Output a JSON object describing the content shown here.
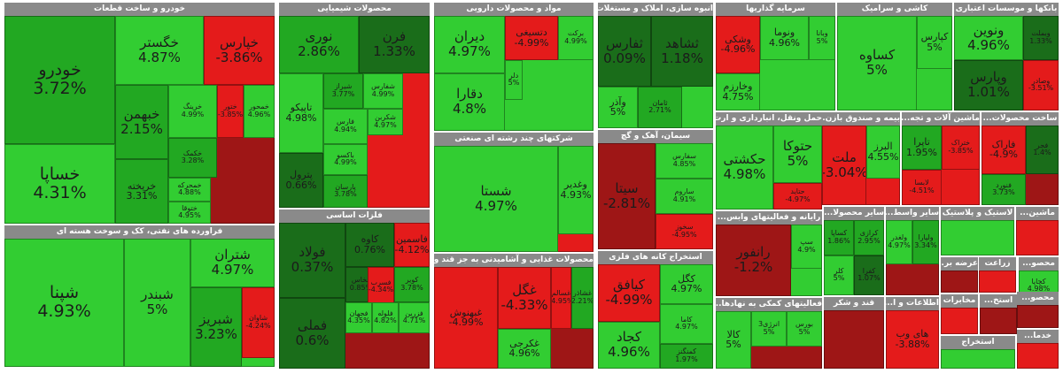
{
  "colors": {
    "strong_green": "#32cd32",
    "green": "#22a822",
    "dark_green": "#1a6d1a",
    "red": "#e41b1b",
    "dark_red": "#9e1616",
    "header": "#8a8a8a"
  },
  "sectors": [
    {
      "id": "auto",
      "title": "خودرو و ساخت قطعات",
      "tiles": [
        {
          "sym": "خودرو",
          "pct": "3.72%"
        },
        {
          "sym": "خساپا",
          "pct": "4.31%"
        },
        {
          "sym": "خگستر",
          "pct": "4.87%"
        },
        {
          "sym": "خپارس",
          "pct": "-3.86%"
        },
        {
          "sym": "خبهمن",
          "pct": "2.15%"
        },
        {
          "sym": "خریخته",
          "pct": "3.31%"
        },
        {
          "sym": "خرینگ",
          "pct": "4.99%"
        },
        {
          "sym": "خمحور",
          "pct": "4.96%"
        },
        {
          "sym": "خکمک",
          "pct": "3.28%"
        },
        {
          "sym": "خمحرکه",
          "pct": "4.88%"
        },
        {
          "sym": "ختوقا",
          "pct": "4.95%"
        },
        {
          "sym": "ختور",
          "pct": "-3.85%"
        }
      ]
    },
    {
      "id": "petro",
      "title": "فراورده های نفتی، کک و سوخت هسته ای",
      "tiles": [
        {
          "sym": "شپنا",
          "pct": "4.93%"
        },
        {
          "sym": "شبندر",
          "pct": "5%"
        },
        {
          "sym": "شتران",
          "pct": "4.97%"
        },
        {
          "sym": "شبریز",
          "pct": "3.23%"
        },
        {
          "sym": "شاوان",
          "pct": "-4.24%"
        }
      ]
    },
    {
      "id": "chem",
      "title": "محصولات شیمیایی",
      "tiles": [
        {
          "sym": "نوری",
          "pct": "2.86%"
        },
        {
          "sym": "فرن",
          "pct": "1.33%"
        },
        {
          "sym": "تاپیکو",
          "pct": "4.98%"
        },
        {
          "sym": "شیراز",
          "pct": "3.77%"
        },
        {
          "sym": "شفارس",
          "pct": "4.99%"
        },
        {
          "sym": "فارس",
          "pct": "4.94%"
        },
        {
          "sym": "پترول",
          "pct": "0.66%"
        },
        {
          "sym": "شکربن",
          "pct": "4.97%"
        },
        {
          "sym": "باکسو",
          "pct": "4.99%"
        },
        {
          "sym": "پارسان",
          "pct": "3.78%"
        }
      ]
    },
    {
      "id": "metals",
      "title": "فلزات اساسی",
      "tiles": [
        {
          "sym": "فولاد",
          "pct": "0.37%"
        },
        {
          "sym": "کاوه",
          "pct": "0.76%"
        },
        {
          "sym": "فاسمین",
          "pct": "-4.12%"
        },
        {
          "sym": "فملی",
          "pct": "0.6%"
        },
        {
          "sym": "فخاس",
          "pct": "0.85%"
        },
        {
          "sym": "کویر",
          "pct": "3.78%"
        },
        {
          "sym": "فسرب",
          "pct": "-4.34%"
        },
        {
          "sym": "فجهان",
          "pct": "4.35%"
        },
        {
          "sym": "فلوله",
          "pct": "4.82%"
        },
        {
          "sym": "فزرین",
          "pct": "4.71%"
        }
      ]
    },
    {
      "id": "pharma",
      "title": "مواد و محصولات دارویی",
      "tiles": [
        {
          "sym": "دیران",
          "pct": "4.97%"
        },
        {
          "sym": "دقارا",
          "pct": "4.8%"
        },
        {
          "sym": "دتسیغی",
          "pct": "-4.99%"
        },
        {
          "sym": "برکت",
          "pct": "4.99%"
        },
        {
          "sym": "دلر",
          "pct": "5%"
        }
      ]
    },
    {
      "id": "multi",
      "title": "شرکتهای چند رشته ای صنعتی",
      "tiles": [
        {
          "sym": "شستا",
          "pct": "4.97%"
        },
        {
          "sym": "وغدیر",
          "pct": "4.93%"
        }
      ]
    },
    {
      "id": "food",
      "title": "محصولات غذایی و آشامیدنی به جز قند و",
      "tiles": [
        {
          "sym": "غبهنوش",
          "pct": "-4.99%"
        },
        {
          "sym": "غگل",
          "pct": "-4.33%"
        },
        {
          "sym": "غسالم",
          "pct": "-4.95%"
        },
        {
          "sym": "غشاذر",
          "pct": "2.21%"
        },
        {
          "sym": "غکرجی",
          "pct": "4.96%"
        }
      ]
    },
    {
      "id": "realestate",
      "title": "انبوه سازی، املاک و مستغلات",
      "tiles": [
        {
          "sym": "ثفارس",
          "pct": "0.09%"
        },
        {
          "sym": "ثشاهد",
          "pct": "1.18%"
        },
        {
          "sym": "وآذر",
          "pct": "5%"
        },
        {
          "sym": "ثامان",
          "pct": "2.71%"
        }
      ]
    },
    {
      "id": "cement",
      "title": "سیمان، آهک و گچ",
      "tiles": [
        {
          "sym": "سیتا",
          "pct": "-2.81%"
        },
        {
          "sym": "سفارس",
          "pct": "4.85%"
        },
        {
          "sym": "سخوز",
          "pct": "-4.95%"
        },
        {
          "sym": "ساروم",
          "pct": "4.91%"
        }
      ]
    },
    {
      "id": "mining",
      "title": "استخراج کانه های فلزی",
      "tiles": [
        {
          "sym": "کیافق",
          "pct": "-4.99%"
        },
        {
          "sym": "کگل",
          "pct": "4.97%"
        },
        {
          "sym": "کجاد",
          "pct": "4.96%"
        },
        {
          "sym": "کاما",
          "pct": "4.97%"
        },
        {
          "sym": "کمنگنز",
          "pct": "1.97%"
        }
      ]
    },
    {
      "id": "invest",
      "title": "سرمایه گذاریها",
      "tiles": [
        {
          "sym": "وشکی",
          "pct": "-4.96%"
        },
        {
          "sym": "ونوما",
          "pct": "4.96%"
        },
        {
          "sym": "وبانا",
          "pct": "5%"
        },
        {
          "sym": "وخارزم",
          "pct": "4.75%"
        }
      ]
    },
    {
      "id": "transport",
      "title": "حمل ونقل، انبارداری و ارت...",
      "tiles": [
        {
          "sym": "حکشتی",
          "pct": "4.98%"
        },
        {
          "sym": "حتوکا",
          "pct": "5%"
        },
        {
          "sym": "حتاید",
          "pct": "-4.97%"
        }
      ]
    },
    {
      "id": "finance",
      "title": "فعالیتهای کمکی به نهادها...",
      "tiles": [
        {
          "sym": "کالا",
          "pct": "5%"
        },
        {
          "sym": "انرژی3",
          "pct": "5%"
        },
        {
          "sym": "بورس",
          "pct": "5%"
        }
      ]
    },
    {
      "id": "tiles",
      "title": "کاشی و سرامیک",
      "tiles": [
        {
          "sym": "کساوه",
          "pct": "5%"
        },
        {
          "sym": "کپارس",
          "pct": "5%"
        }
      ]
    },
    {
      "id": "insurance",
      "title": "بیمه و صندوق بازن...",
      "tiles": [
        {
          "sym": "ملت",
          "pct": "-3.04%"
        },
        {
          "sym": "البرز",
          "pct": "4.55%"
        }
      ]
    },
    {
      "id": "fingroup",
      "title": "واسطه‌گری‌های مالی و پولی",
      "tiles": []
    },
    {
      "id": "banks",
      "title": "بانکها و موسسات اعتباری",
      "tiles": [
        {
          "sym": "ونوین",
          "pct": "4.96%"
        },
        {
          "sym": "وپارس",
          "pct": "1.01%"
        },
        {
          "sym": "وبملت",
          "pct": "1.33%"
        },
        {
          "sym": "وصادر",
          "pct": "-3.51%"
        }
      ]
    },
    {
      "id": "machinery",
      "title": "ماشین آلات و تجه...",
      "tiles": [
        {
          "sym": "تاپرا",
          "pct": "1.95%"
        },
        {
          "sym": "ختراک",
          "pct": "-3.85%"
        },
        {
          "sym": "لابسا",
          "pct": "-4.51%"
        }
      ]
    },
    {
      "id": "otherprod",
      "title": "ساخت محصولات...",
      "tiles": [
        {
          "sym": "فاراک",
          "pct": "-4.9%"
        },
        {
          "sym": "فجر",
          "pct": "1.4%"
        },
        {
          "sym": "فنورد",
          "pct": "3.73%"
        }
      ]
    },
    {
      "id": "computer",
      "title": "رایانه و فعالیتهای وابس...",
      "tiles": [
        {
          "sym": "رانفور",
          "pct": "-1.2%"
        },
        {
          "sym": "سپ",
          "pct": "4.9%"
        }
      ]
    },
    {
      "id": "othermin",
      "title": "سایر محصولا...",
      "tiles": [
        {
          "sym": "کساپا",
          "pct": "1.86%"
        },
        {
          "sym": "کرازی",
          "pct": "2.95%"
        },
        {
          "sym": "کلر",
          "pct": "5%"
        },
        {
          "sym": "کفرا",
          "pct": "1.07%"
        }
      ]
    },
    {
      "id": "othermetal",
      "title": "سایر واسط...",
      "tiles": [
        {
          "sym": "ولغدر",
          "pct": "4.97%"
        },
        {
          "sym": "ولپارا",
          "pct": "3.34%"
        }
      ]
    },
    {
      "id": "rubber",
      "title": "لاستیک و پلاستیک",
      "tiles": []
    },
    {
      "id": "electric",
      "title": "ماشین...",
      "tiles": []
    },
    {
      "id": "sugar",
      "title": "قند و شکر",
      "tiles": []
    },
    {
      "id": "info",
      "title": "اطلاعات و ا...",
      "tiles": [
        {
          "sym": "های وب",
          "pct": "-3.88%"
        }
      ]
    },
    {
      "id": "farm",
      "title": "زراعت",
      "tiles": []
    },
    {
      "id": "supply",
      "title": "عرضه بر...",
      "tiles": []
    },
    {
      "id": "mixed",
      "title": "محصو...",
      "tiles": [
        {
          "sym": "کچاپا",
          "pct": "4.98%"
        },
        {
          "sym": "کلسی",
          "pct": "3.97%"
        }
      ]
    },
    {
      "id": "misc",
      "title": "مخابرات",
      "tiles": []
    },
    {
      "id": "extract",
      "title": "استخ...",
      "tiles": []
    },
    {
      "id": "misc2",
      "title": "استخراج",
      "tiles": []
    },
    {
      "id": "misc3",
      "title": "خدما...",
      "tiles": []
    },
    {
      "id": "misc4",
      "title": "محصو...",
      "tiles": []
    }
  ]
}
